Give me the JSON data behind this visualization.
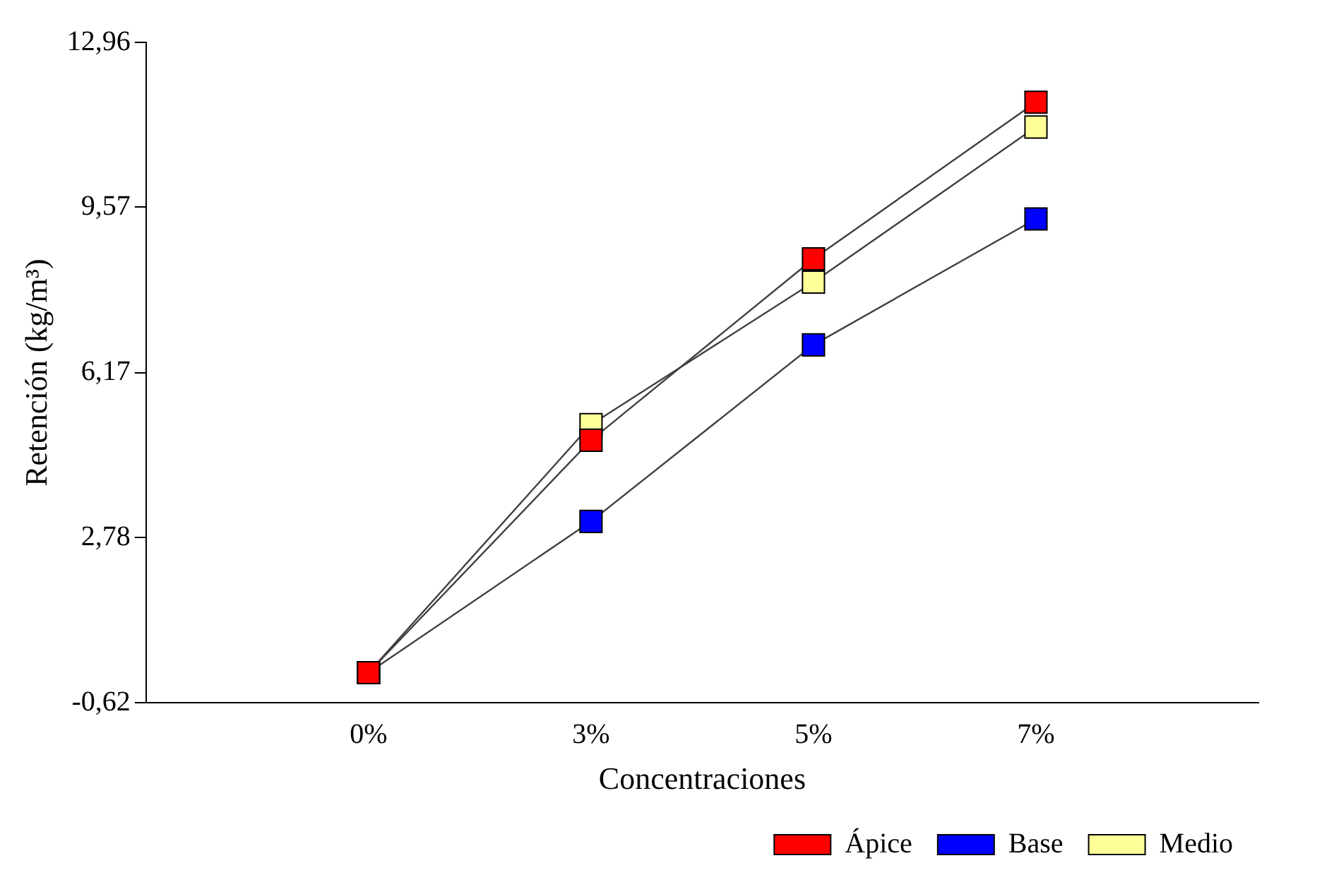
{
  "chart_data": {
    "type": "line",
    "xlabel": "Concentraciones",
    "ylabel": "Retención (kg/m³)",
    "categories": [
      "0%",
      "3%",
      "5%",
      "7%"
    ],
    "series": [
      {
        "name": "Ápice",
        "color": "#ff0000",
        "values": [
          0.0,
          4.78,
          8.51,
          11.73
        ]
      },
      {
        "name": "Base",
        "color": "#0000ff",
        "values": [
          0.0,
          3.11,
          6.74,
          9.33
        ]
      },
      {
        "name": "Medio",
        "color": "#ffff99",
        "values": [
          0.0,
          5.1,
          8.03,
          11.22
        ]
      }
    ],
    "ylim": [
      -0.62,
      12.96
    ],
    "yticks": [
      {
        "value": -0.62,
        "label": "-0,62"
      },
      {
        "value": 2.78,
        "label": "2,78"
      },
      {
        "value": 6.17,
        "label": "6,17"
      },
      {
        "value": 9.57,
        "label": "9,57"
      },
      {
        "value": 12.96,
        "label": "12,96"
      }
    ],
    "grid": false,
    "legend": "bottom",
    "marker": "square",
    "line_style": "solid"
  }
}
